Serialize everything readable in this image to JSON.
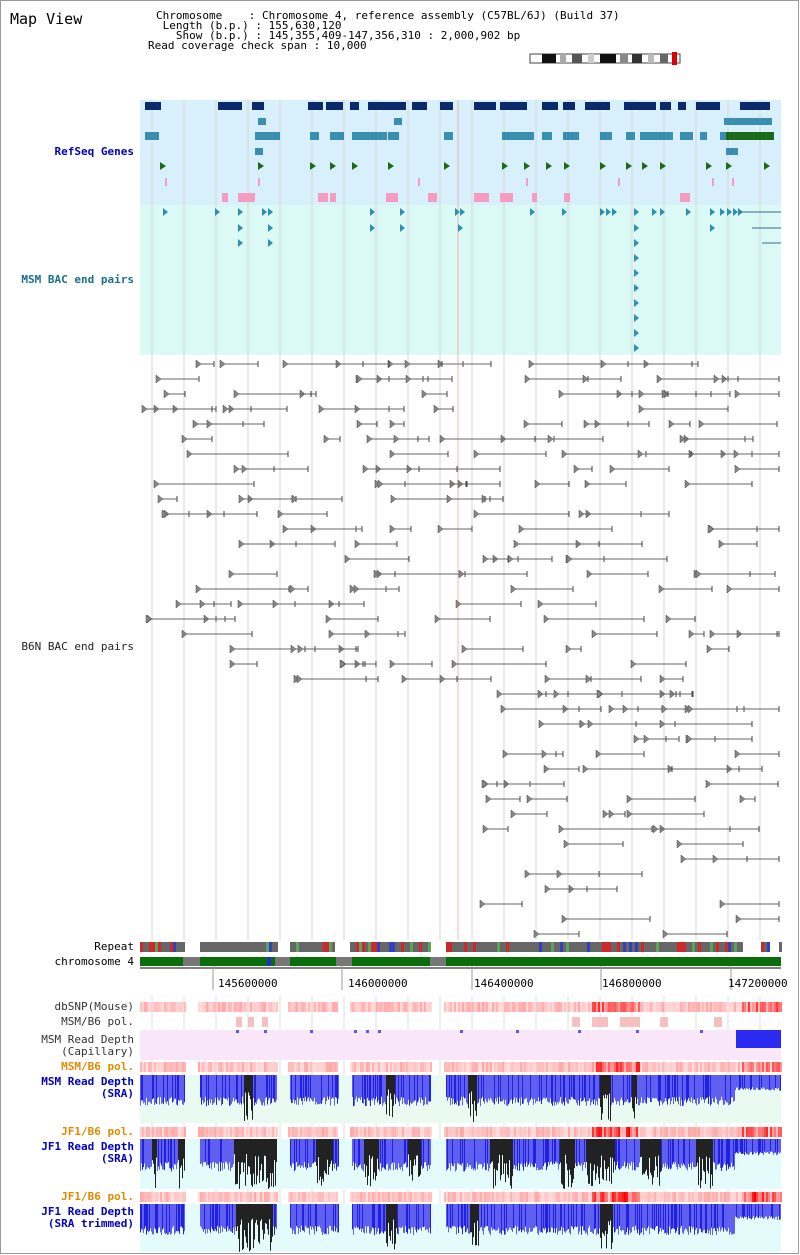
{
  "page": {
    "title": "Map View"
  },
  "info": {
    "chromosome_key": "Chromosome",
    "chromosome_val": "Chromosome 4, reference assembly (C57BL/6J) (Build 37)",
    "length_key": "Length (b.p.)",
    "length_val": "155,630,120",
    "show_key": "Show (b.p.)",
    "show_val": "145,355,409-147,356,310 : 2,000,902 bp",
    "coverage_key": "Read coverage check span",
    "coverage_val": "10,000"
  },
  "tracks": {
    "refseq": "RefSeq Genes",
    "msm_bac": "MSM BAC end pairs",
    "b6n_bac": "B6N BAC end pairs",
    "repeat": "Repeat",
    "chromosome": "chromosome 4",
    "dbsnp": "dbSNP(Mouse)",
    "msm_b6_pol_1": "MSM/B6 pol.",
    "msm_depth_cap_1": "MSM Read Depth",
    "msm_depth_cap_2": "(Capillary)",
    "msm_b6_pol_2": "MSM/B6 pol.",
    "msm_depth_sra_1": "MSM Read Depth",
    "msm_depth_sra_2": "(SRA)",
    "jf1_b6_pol_1": "JF1/B6 pol.",
    "jf1_depth_sra_1": "JF1 Read Depth",
    "jf1_depth_sra_2": "(SRA)",
    "jf1_b6_pol_2": "JF1/B6 pol.",
    "jf1_trim_1": "JF1 Read Depth",
    "jf1_trim_2": "(SRA trimmed)"
  },
  "ruler": {
    "ticks": [
      "145600000",
      "146000000",
      "146400000",
      "146800000",
      "147200000"
    ]
  },
  "colors": {
    "refseq_bg": "#d8f0fb",
    "msm_bg": "#dcfaf5",
    "navy": "#0b2a6b",
    "teal": "#3a8fb0",
    "green": "#1b6b1b",
    "pink": "#f59cc0",
    "chrom_green": "#0a6e0a",
    "msm_cap_bg": "#f9e6f9",
    "sra_bg": "#e9fbf1",
    "jf1_bg": "#e4fbfb",
    "depth_blue": "#1a1af0",
    "pol_red": "#f03030",
    "orange_label": "#e08a00",
    "blue_label": "#0000c0",
    "teal_label": "#1a6f8a"
  }
}
